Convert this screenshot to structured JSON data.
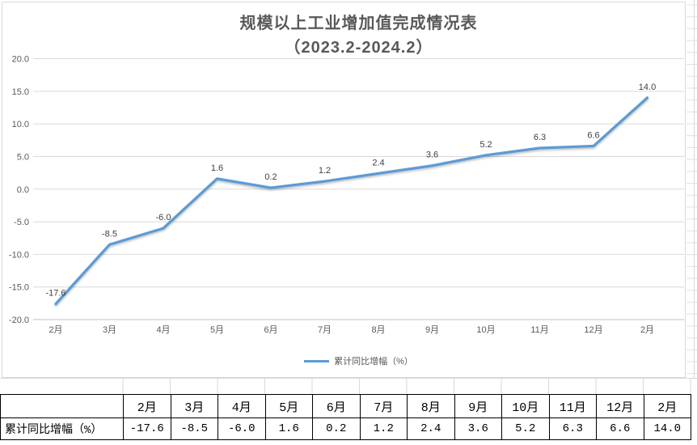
{
  "chart_data": {
    "type": "line",
    "title": "规模以上工业增加值完成情况表",
    "subtitle": "（2023.2-2024.2）",
    "categories": [
      "2月",
      "3月",
      "4月",
      "5月",
      "6月",
      "7月",
      "8月",
      "9月",
      "10月",
      "11月",
      "12月",
      "2月"
    ],
    "series": [
      {
        "name": "累计同比增幅（%）",
        "values": [
          -17.6,
          -8.5,
          -6.0,
          1.6,
          0.2,
          1.2,
          2.4,
          3.6,
          5.2,
          6.3,
          6.6,
          14.0
        ]
      }
    ],
    "data_labels": [
      "-17.6",
      "-8.5",
      "-6.0",
      "1.6",
      "0.2",
      "1.2",
      "2.4",
      "3.6",
      "5.2",
      "6.3",
      "6.6",
      "14.0"
    ],
    "xlabel": "",
    "ylabel": "",
    "ylim": [
      -20,
      20
    ],
    "ytick_step": 5,
    "ytick_labels": [
      "20.0",
      "15.0",
      "10.0",
      "5.0",
      "0.0",
      "-5.0",
      "-10.0",
      "-15.0",
      "-20.0"
    ],
    "grid": true,
    "legend_position": "bottom"
  },
  "legend": {
    "label": "累计同比增幅（%）"
  },
  "table": {
    "row_header_label": "累计同比增幅（%）",
    "months": [
      "2月",
      "3月",
      "4月",
      "5月",
      "6月",
      "7月",
      "8月",
      "9月",
      "10月",
      "11月",
      "12月",
      "2月"
    ],
    "values": [
      "-17.6",
      "-8.5",
      "-6.0",
      "1.6",
      "0.2",
      "1.2",
      "2.4",
      "3.6",
      "5.2",
      "6.3",
      "6.6",
      "14.0"
    ]
  },
  "colors": {
    "line": "#5b9bd5",
    "title_text": "#595959",
    "axis_text": "#595959",
    "data_label_text": "#404040",
    "gridline": "#d9d9d9",
    "axis_line": "#bfbfbf",
    "chart_border": "#d9d9d9",
    "excel_gridline": "#e0e0e0",
    "table_border": "#000000"
  }
}
